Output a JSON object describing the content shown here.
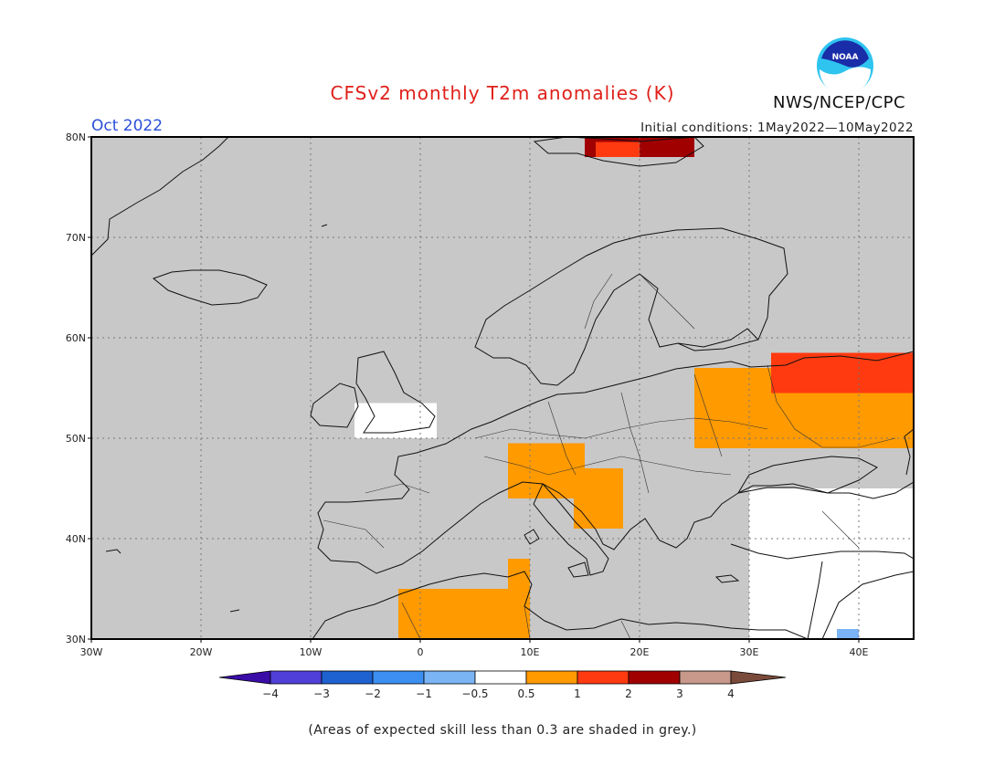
{
  "header": {
    "title": "CFSv2 monthly T2m anomalies (K)",
    "agency": "NWS/NCEP/CPC",
    "logo_text": "NOAA",
    "target_month": "Oct 2022",
    "initial_conditions": "Initial conditions: 1May2022—10May2022"
  },
  "map": {
    "lon_range": [
      -30,
      45
    ],
    "lat_range": [
      30,
      80
    ],
    "lat_labels": [
      "30N",
      "40N",
      "50N",
      "60N",
      "70N",
      "80N"
    ],
    "lon_labels": [
      "30W",
      "20W",
      "10W",
      "0",
      "10E",
      "20E",
      "30E",
      "40E"
    ],
    "background_color": "#c8c8c8",
    "anomaly_regions": [
      {
        "lon": [
          25,
          45
        ],
        "lat": [
          49,
          57
        ],
        "level": "0.5 to 1",
        "color": "#ff9a00"
      },
      {
        "lon": [
          32,
          45
        ],
        "lat": [
          54.5,
          58.5
        ],
        "level": "1 to 2",
        "color": "#ff3a10"
      },
      {
        "lon": [
          15,
          25
        ],
        "lat": [
          78,
          80
        ],
        "level": "2 to 3",
        "color": "#a00000"
      },
      {
        "lon": [
          16,
          20
        ],
        "lat": [
          78,
          79.5
        ],
        "level": "1 to 2",
        "color": "#ff3a10"
      },
      {
        "lon": [
          8,
          15
        ],
        "lat": [
          44,
          49.5
        ],
        "level": "0.5 to 1",
        "color": "#ff9a00"
      },
      {
        "lon": [
          14,
          18.5
        ],
        "lat": [
          41,
          47
        ],
        "level": "0.5 to 1",
        "color": "#ff9a00"
      },
      {
        "lon": [
          -2,
          10
        ],
        "lat": [
          30,
          35
        ],
        "level": "0.5 to 1",
        "color": "#ff9a00"
      },
      {
        "lon": [
          8,
          10
        ],
        "lat": [
          35,
          38
        ],
        "level": "0.5 to 1",
        "color": "#ff9a00"
      },
      {
        "lon": [
          30,
          45
        ],
        "lat": [
          30,
          45
        ],
        "level": "-0.5 to 0.5",
        "color": "#ffffff"
      },
      {
        "lon": [
          -6,
          1.5
        ],
        "lat": [
          50,
          53.5
        ],
        "level": "-0.5 to 0.5",
        "color": "#ffffff"
      },
      {
        "lon": [
          38,
          40
        ],
        "lat": [
          30,
          31
        ],
        "level": "-1 to -0.5",
        "color": "#7ab4f5"
      }
    ]
  },
  "colorbar": {
    "labels": [
      "−4",
      "−3",
      "−2",
      "−1",
      "−0.5",
      "0.5",
      "1",
      "2",
      "3",
      "4"
    ],
    "colors": [
      "#3a0ca8",
      "#5040d8",
      "#1e62d0",
      "#3c8ff0",
      "#7ab4f5",
      "#ffffff",
      "#ff9a00",
      "#ff3a10",
      "#a00000",
      "#c8988a",
      "#7a4a3a"
    ]
  },
  "footnote": "(Areas of expected skill less than 0.3 are shaded in grey.)"
}
